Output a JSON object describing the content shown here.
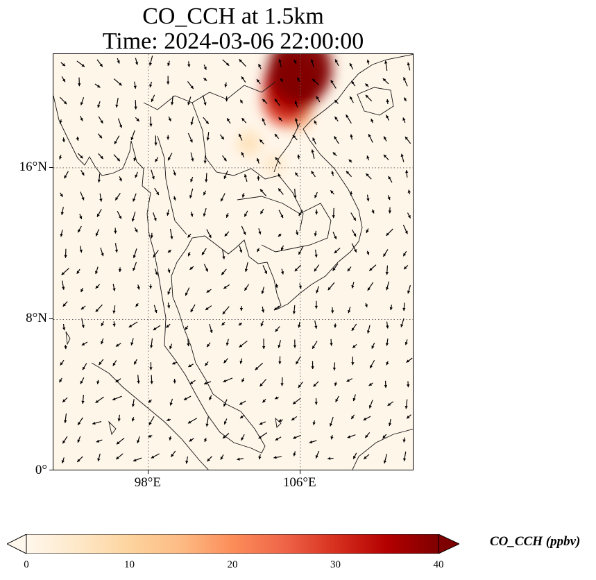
{
  "title": {
    "line1": "CO_CCH at 1.5km",
    "line2": "Time: 2024-03-06 22:00:00"
  },
  "map": {
    "lon_range": [
      93,
      112
    ],
    "lat_range": [
      0,
      22
    ],
    "lat_ticks": [
      {
        "value": 16,
        "label": "16°N"
      },
      {
        "value": 8,
        "label": "8°N"
      },
      {
        "value": 0,
        "label": "0°"
      }
    ],
    "lon_ticks": [
      {
        "value": 98,
        "label": "98°E"
      },
      {
        "value": 106,
        "label": "106°E"
      }
    ],
    "gridlines": "dotted",
    "field": "CO_CCH",
    "hotspots": [
      {
        "lon": 106.0,
        "lat": 21.2,
        "value": 40
      },
      {
        "lon": 105.6,
        "lat": 20.4,
        "value": 35
      },
      {
        "lon": 105.3,
        "lat": 19.6,
        "value": 28
      },
      {
        "lon": 105.8,
        "lat": 18.9,
        "value": 14
      },
      {
        "lon": 103.3,
        "lat": 17.3,
        "value": 7
      },
      {
        "lon": 104.6,
        "lat": 16.2,
        "value": 5
      }
    ]
  },
  "colorbar": {
    "label": "CO_CCH (ppbv)",
    "colormap": "OrRd",
    "colors": [
      "#fff7ec",
      "#fee8c8",
      "#fdd49e",
      "#fdbb84",
      "#fc8d59",
      "#ef6548",
      "#d7301f",
      "#b30000",
      "#7f0000"
    ],
    "range": [
      0,
      40
    ],
    "extend": "both",
    "ticks": [
      {
        "value": 0,
        "label": "0"
      },
      {
        "value": 10,
        "label": "10"
      },
      {
        "value": 20,
        "label": "20"
      },
      {
        "value": 30,
        "label": "30"
      },
      {
        "value": 40,
        "label": "40"
      }
    ]
  }
}
